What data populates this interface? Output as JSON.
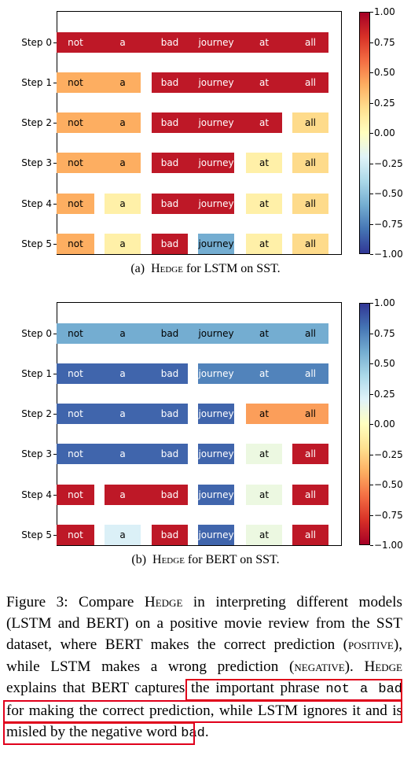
{
  "chart_data": [
    {
      "type": "heatmap",
      "caption_label": "(a)",
      "caption_method": "Hedge",
      "caption_rest": "for LSTM on SST.",
      "steps": [
        "Step 0",
        "Step 1",
        "Step 2",
        "Step 3",
        "Step 4",
        "Step 5"
      ],
      "words": [
        "not",
        "a",
        "bad",
        "journey",
        "at",
        "all"
      ],
      "segments": [
        [
          {
            "start": 0,
            "end": 5,
            "value": 0.9
          }
        ],
        [
          {
            "start": 0,
            "end": 1,
            "value": 0.4
          },
          {
            "start": 2,
            "end": 5,
            "value": 0.9
          }
        ],
        [
          {
            "start": 0,
            "end": 1,
            "value": 0.4
          },
          {
            "start": 2,
            "end": 4,
            "value": 0.9
          },
          {
            "start": 5,
            "end": 5,
            "value": 0.22
          }
        ],
        [
          {
            "start": 0,
            "end": 1,
            "value": 0.4
          },
          {
            "start": 2,
            "end": 3,
            "value": 0.9
          },
          {
            "start": 4,
            "end": 4,
            "value": 0.1
          },
          {
            "start": 5,
            "end": 5,
            "value": 0.22
          }
        ],
        [
          {
            "start": 0,
            "end": 0,
            "value": 0.4
          },
          {
            "start": 1,
            "end": 1,
            "value": 0.1
          },
          {
            "start": 2,
            "end": 3,
            "value": 0.9
          },
          {
            "start": 4,
            "end": 4,
            "value": 0.1
          },
          {
            "start": 5,
            "end": 5,
            "value": 0.22
          }
        ],
        [
          {
            "start": 0,
            "end": 0,
            "value": 0.4
          },
          {
            "start": 1,
            "end": 1,
            "value": 0.1
          },
          {
            "start": 2,
            "end": 2,
            "value": 0.9
          },
          {
            "start": 3,
            "end": 3,
            "value": -0.6
          },
          {
            "start": 4,
            "end": 4,
            "value": 0.1
          },
          {
            "start": 5,
            "end": 5,
            "value": 0.22
          }
        ]
      ],
      "colorbar": {
        "range": [
          -1.0,
          1.0
        ],
        "direction": "high-red",
        "ticks": [
          "1.00",
          "0.75",
          "0.50",
          "0.25",
          "0.00",
          "−0.25",
          "−0.50",
          "−0.75",
          "−1.00"
        ]
      }
    },
    {
      "type": "heatmap",
      "caption_label": "(b)",
      "caption_method": "Hedge",
      "caption_rest": "for BERT on SST.",
      "steps": [
        "Step 0",
        "Step 1",
        "Step 2",
        "Step 3",
        "Step 4",
        "Step 5"
      ],
      "words": [
        "not",
        "a",
        "bad",
        "journey",
        "at",
        "all"
      ],
      "segments": [
        [
          {
            "start": 0,
            "end": 5,
            "value": 0.6
          }
        ],
        [
          {
            "start": 0,
            "end": 2,
            "value": 0.85
          },
          {
            "start": 3,
            "end": 5,
            "value": 0.75
          }
        ],
        [
          {
            "start": 0,
            "end": 2,
            "value": 0.85
          },
          {
            "start": 3,
            "end": 3,
            "value": 0.85
          },
          {
            "start": 4,
            "end": 5,
            "value": -0.45
          }
        ],
        [
          {
            "start": 0,
            "end": 2,
            "value": 0.85
          },
          {
            "start": 3,
            "end": 3,
            "value": 0.85
          },
          {
            "start": 4,
            "end": 4,
            "value": 0.12
          },
          {
            "start": 5,
            "end": 5,
            "value": -0.9
          }
        ],
        [
          {
            "start": 0,
            "end": 0,
            "value": -0.9
          },
          {
            "start": 1,
            "end": 2,
            "value": -0.9
          },
          {
            "start": 3,
            "end": 3,
            "value": 0.85
          },
          {
            "start": 4,
            "end": 4,
            "value": 0.12
          },
          {
            "start": 5,
            "end": 5,
            "value": -0.9
          }
        ],
        [
          {
            "start": 0,
            "end": 0,
            "value": -0.9
          },
          {
            "start": 1,
            "end": 1,
            "value": 0.22
          },
          {
            "start": 2,
            "end": 2,
            "value": -0.9
          },
          {
            "start": 3,
            "end": 3,
            "value": 0.85
          },
          {
            "start": 4,
            "end": 4,
            "value": 0.12
          },
          {
            "start": 5,
            "end": 5,
            "value": -0.9
          }
        ]
      ],
      "colorbar": {
        "range": [
          -1.0,
          1.0
        ],
        "direction": "high-blue",
        "ticks": [
          "1.00",
          "0.75",
          "0.50",
          "0.25",
          "0.00",
          "−0.25",
          "−0.50",
          "−0.75",
          "−1.00"
        ]
      }
    }
  ],
  "figure_caption": {
    "p1": "Figure 3:  Compare ",
    "hedge1": "Hedge",
    "p2": " in interpreting different models (LSTM and BERT) on a positive movie review from the SST dataset, where BERT makes the correct prediction (",
    "positive": "positive",
    "p3": "), while LSTM makes a wrong prediction (",
    "negative": "negative",
    "p4": ").  ",
    "hedge2": "Hedge",
    "p5": " explains that BERT captures the important phrase ",
    "phrase": "not a bad",
    "p6": " for making the correct prediction,",
    "p7": " while LSTM ignores it and is misled by the negative word ",
    "word": "bad",
    "p8": "."
  },
  "highlight_color": "#e0001b"
}
